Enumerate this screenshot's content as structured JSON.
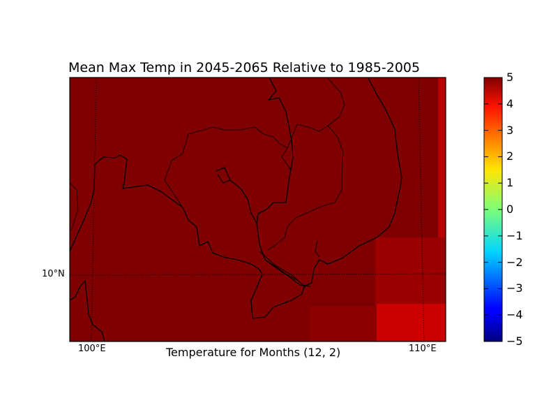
{
  "title": "Mean Max Temp in 2045-2065 Relative to 1985-2005",
  "xlabel": "Temperature for Months (12, 2)",
  "lon_labels": [
    "100°E",
    "110°E"
  ],
  "lat_labels": [
    "10°N"
  ],
  "colorbar": {
    "min": -5,
    "max": 5,
    "ticks": [
      "5",
      "4",
      "3",
      "2",
      "1",
      "0",
      "−1",
      "−2",
      "−3",
      "−4",
      "−5"
    ],
    "colormap": "jet"
  },
  "chart_data": {
    "type": "heatmap",
    "title": "Mean Max Temp in 2045-2065 Relative to 1985-2005",
    "xlabel": "Temperature for Months (12, 2)",
    "value_range": [
      -5,
      5
    ],
    "background_value": 5,
    "notable_cells": [
      {
        "region": "east edge, north",
        "value": 4.6
      },
      {
        "region": "southeast block",
        "value": 4.7
      },
      {
        "region": "far southeast block",
        "value": 4.5
      },
      {
        "region": "south-center block",
        "value": 4.9
      }
    ],
    "grid": "dotted",
    "colors": {
      "max": "#800000",
      "high": "#cc0000",
      "mid": "#b30000"
    }
  }
}
